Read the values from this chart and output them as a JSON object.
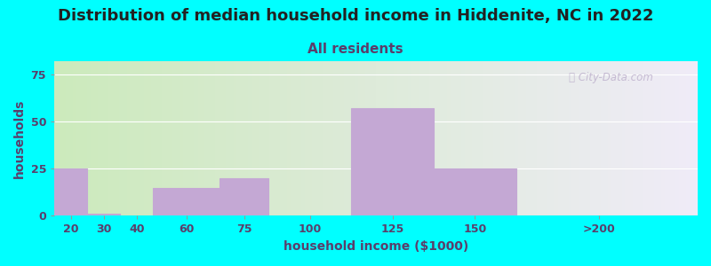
{
  "title": "Distribution of median household income in Hiddenite, NC in 2022",
  "subtitle": "All residents",
  "xlabel": "household income ($1000)",
  "ylabel": "households",
  "background_color": "#00FFFF",
  "plot_bg_gradient_left": "#cceabc",
  "plot_bg_gradient_right": "#f0ecf8",
  "bar_color": "#c4a8d4",
  "bar_edge_color": "#ffffff",
  "watermark": "ⓘ City-Data.com",
  "x_tick_labels": [
    "20",
    "30",
    "40",
    "60",
    "75",
    "100",
    "125",
    "150",
    ">200"
  ],
  "x_tick_positions": [
    15,
    25,
    35,
    50,
    67.5,
    87.5,
    112.5,
    137.5,
    175
  ],
  "bar_left_edges": [
    10,
    20,
    30,
    40,
    60,
    75,
    100,
    125,
    150
  ],
  "bar_widths": [
    10,
    10,
    10,
    20,
    15,
    25,
    25,
    25,
    50
  ],
  "bar_heights": [
    25,
    1,
    0,
    15,
    20,
    0,
    57,
    25,
    0
  ],
  "xlim": [
    10,
    205
  ],
  "ylim": [
    0,
    82
  ],
  "yticks": [
    0,
    25,
    50,
    75
  ],
  "title_fontsize": 13,
  "subtitle_fontsize": 11,
  "axis_label_fontsize": 10,
  "tick_fontsize": 9
}
